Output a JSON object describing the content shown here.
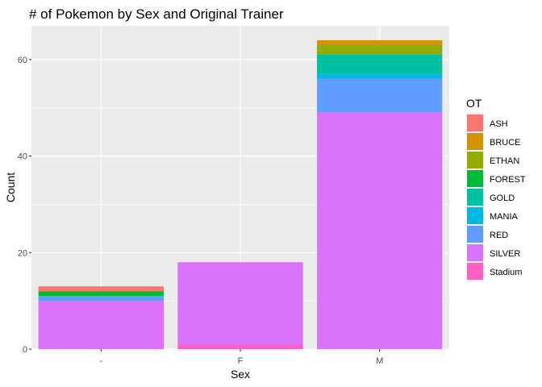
{
  "chart_data": {
    "type": "bar",
    "stacked": true,
    "title": "# of Pokemon by Sex and Original Trainer",
    "xlabel": "Sex",
    "ylabel": "Count",
    "categories": [
      "-",
      "F",
      "M"
    ],
    "ylim": [
      0,
      67
    ],
    "yticks": [
      0,
      20,
      40,
      60
    ],
    "yticks_labels": [
      "0",
      "20",
      "40",
      "60"
    ],
    "legend_title": "OT",
    "legend_position": "right",
    "series": [
      {
        "name": "ASH",
        "color": "#F8766D",
        "values": [
          1,
          0,
          0
        ]
      },
      {
        "name": "BRUCE",
        "color": "#D39200",
        "values": [
          0,
          0,
          1
        ]
      },
      {
        "name": "ETHAN",
        "color": "#93AA00",
        "values": [
          0,
          0,
          2
        ]
      },
      {
        "name": "FOREST",
        "color": "#00BA38",
        "values": [
          1,
          0,
          0
        ]
      },
      {
        "name": "GOLD",
        "color": "#00C19F",
        "values": [
          0,
          0,
          4
        ]
      },
      {
        "name": "MANIA",
        "color": "#00B9E3",
        "values": [
          0,
          0,
          1
        ]
      },
      {
        "name": "RED",
        "color": "#619CFF",
        "values": [
          1,
          0,
          7
        ]
      },
      {
        "name": "SILVER",
        "color": "#DB72FB",
        "values": [
          10,
          17,
          49
        ]
      },
      {
        "name": "Stadium",
        "color": "#FF61C3",
        "values": [
          0,
          1,
          0
        ]
      }
    ]
  }
}
